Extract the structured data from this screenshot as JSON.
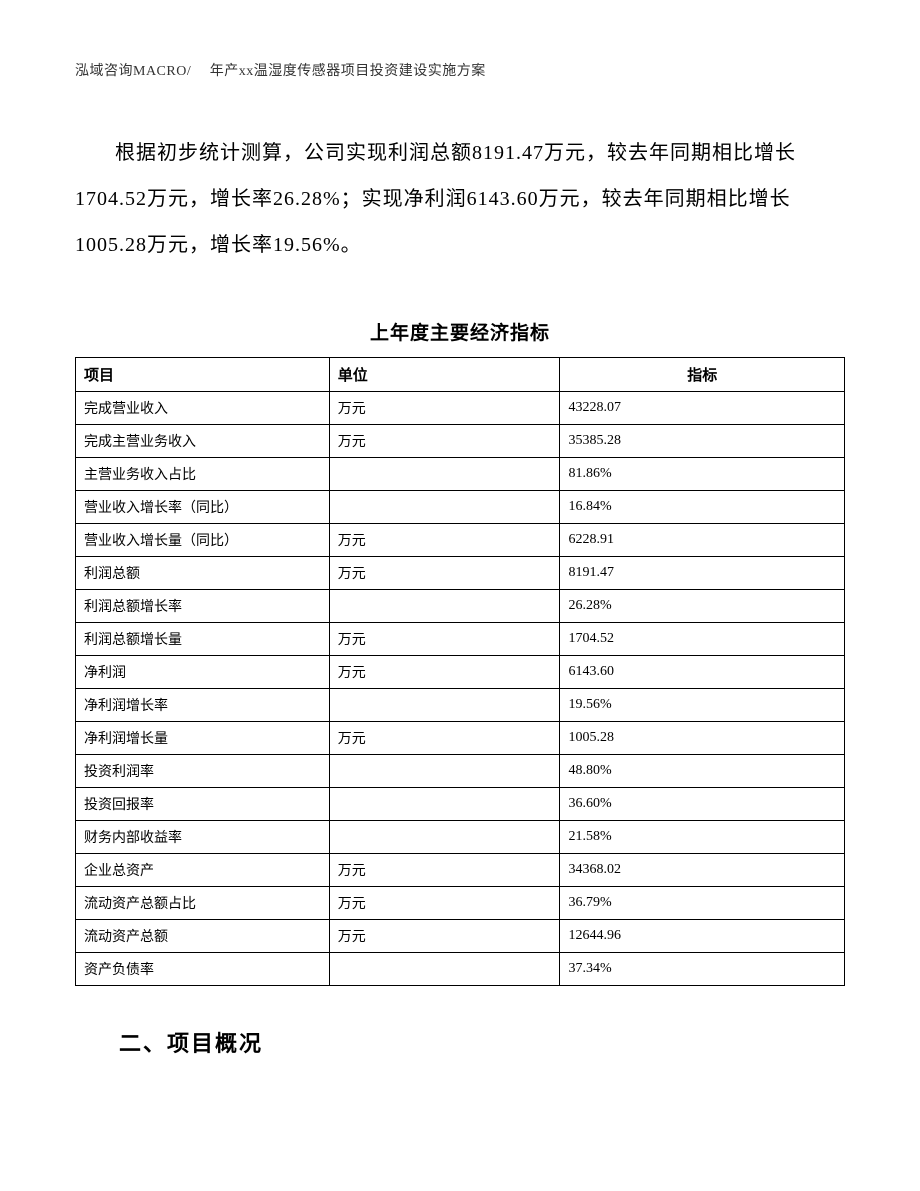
{
  "header": {
    "text": "泓域咨询MACRO/　 年产xx温湿度传感器项目投资建设实施方案"
  },
  "paragraph": {
    "text": "根据初步统计测算，公司实现利润总额8191.47万元，较去年同期相比增长1704.52万元，增长率26.28%；实现净利润6143.60万元，较去年同期相比增长1005.28万元，增长率19.56%。"
  },
  "table": {
    "title": "上年度主要经济指标",
    "columns": {
      "item": "项目",
      "unit": "单位",
      "value": "指标"
    },
    "rows": [
      {
        "item": "完成营业收入",
        "unit": "万元",
        "value": "43228.07"
      },
      {
        "item": "完成主营业务收入",
        "unit": "万元",
        "value": "35385.28"
      },
      {
        "item": "主营业务收入占比",
        "unit": "",
        "value": "81.86%"
      },
      {
        "item": "营业收入增长率（同比）",
        "unit": "",
        "value": "16.84%"
      },
      {
        "item": "营业收入增长量（同比）",
        "unit": "万元",
        "value": "6228.91"
      },
      {
        "item": "利润总额",
        "unit": "万元",
        "value": "8191.47"
      },
      {
        "item": "利润总额增长率",
        "unit": "",
        "value": "26.28%"
      },
      {
        "item": "利润总额增长量",
        "unit": "万元",
        "value": "1704.52"
      },
      {
        "item": "净利润",
        "unit": "万元",
        "value": "6143.60"
      },
      {
        "item": "净利润增长率",
        "unit": "",
        "value": "19.56%"
      },
      {
        "item": "净利润增长量",
        "unit": "万元",
        "value": "1005.28"
      },
      {
        "item": "投资利润率",
        "unit": "",
        "value": "48.80%"
      },
      {
        "item": "投资回报率",
        "unit": "",
        "value": "36.60%"
      },
      {
        "item": "财务内部收益率",
        "unit": "",
        "value": "21.58%"
      },
      {
        "item": "企业总资产",
        "unit": "万元",
        "value": "34368.02"
      },
      {
        "item": "流动资产总额占比",
        "unit": "万元",
        "value": "36.79%"
      },
      {
        "item": "流动资产总额",
        "unit": "万元",
        "value": "12644.96"
      },
      {
        "item": "资产负债率",
        "unit": "",
        "value": "37.34%"
      }
    ]
  },
  "section": {
    "heading": "二、项目概况"
  }
}
